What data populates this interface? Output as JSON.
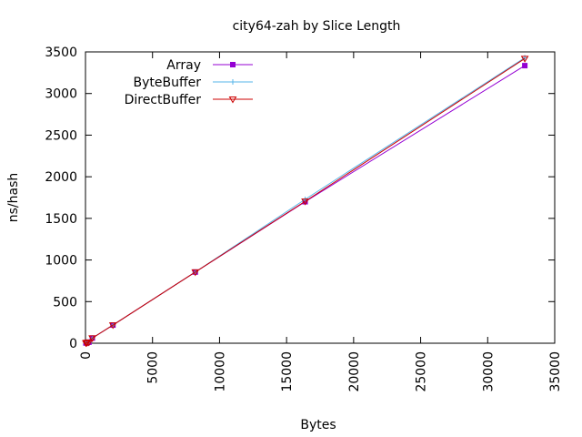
{
  "chart_data": {
    "type": "line",
    "title": "city64-zah by Slice Length",
    "xlabel": "Bytes",
    "ylabel": "ns/hash",
    "xlim": [
      0,
      35000
    ],
    "ylim": [
      0,
      3500
    ],
    "xticks": [
      0,
      5000,
      10000,
      15000,
      20000,
      25000,
      30000,
      35000
    ],
    "yticks": [
      0,
      500,
      1000,
      1500,
      2000,
      2500,
      3000,
      3500
    ],
    "grid": false,
    "legend_position": "top-left",
    "series": [
      {
        "name": "Array",
        "color": "#9400d3",
        "marker": "square",
        "x": [
          32,
          64,
          128,
          256,
          512,
          2048,
          8192,
          16384,
          32768
        ],
        "y": [
          3,
          5,
          8,
          12,
          62,
          218,
          855,
          1700,
          3335
        ]
      },
      {
        "name": "ByteBuffer",
        "color": "#56b4e9",
        "marker": "plus",
        "x": [
          32,
          64,
          128,
          256,
          512,
          2048,
          8192,
          16384,
          32768
        ],
        "y": [
          3,
          5,
          8,
          12,
          62,
          218,
          855,
          1728,
          3430
        ]
      },
      {
        "name": "DirectBuffer",
        "color": "#cc0000",
        "marker": "triangle-down",
        "x": [
          32,
          64,
          128,
          256,
          512,
          2048,
          8192,
          16384,
          32768
        ],
        "y": [
          3,
          5,
          8,
          12,
          62,
          218,
          855,
          1705,
          3420
        ]
      }
    ]
  }
}
